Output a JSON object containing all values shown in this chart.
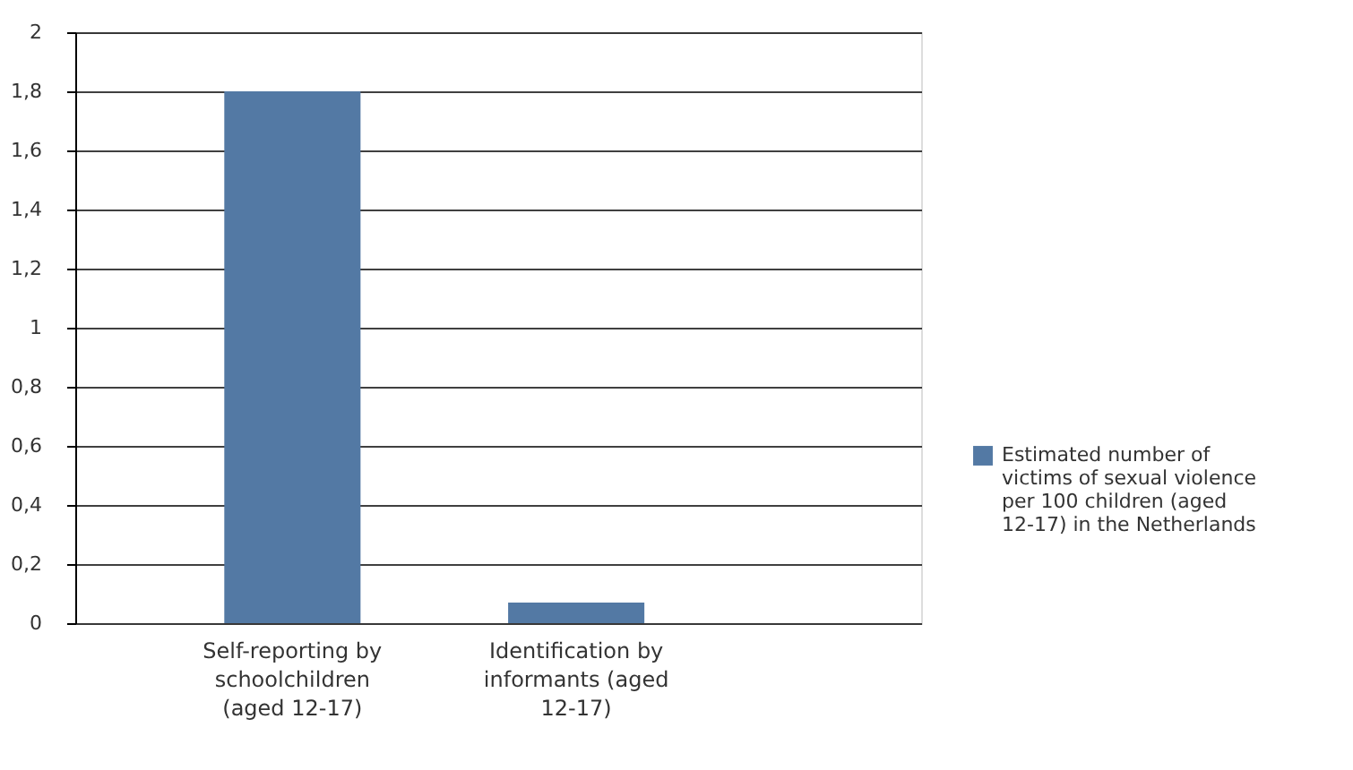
{
  "chart_data": {
    "type": "bar",
    "categories": [
      "Self-reporting by schoolchildren (aged 12-17)",
      "Identification by informants (aged 12-17)"
    ],
    "series": [
      {
        "name": "Estimated number of victims of sexual violence per 100 children (aged 12-17) in the Netherlands",
        "color": "#5379a4",
        "values": [
          1.8,
          0.07
        ]
      }
    ],
    "ylim": [
      0,
      2
    ],
    "yticks": [
      0,
      {
        "value": 0.2,
        "label": "0,2"
      },
      {
        "value": 0.4,
        "label": "0,4"
      },
      {
        "value": 0.6,
        "label": "0,6"
      },
      {
        "value": 0.8,
        "label": "0,8"
      },
      1,
      {
        "value": 1.2,
        "label": "1,2"
      },
      {
        "value": 1.4,
        "label": "1,4"
      },
      {
        "value": 1.6,
        "label": "1,6"
      },
      {
        "value": 1.8,
        "label": "1,8"
      },
      2
    ],
    "grid": "y",
    "legend": "right"
  }
}
